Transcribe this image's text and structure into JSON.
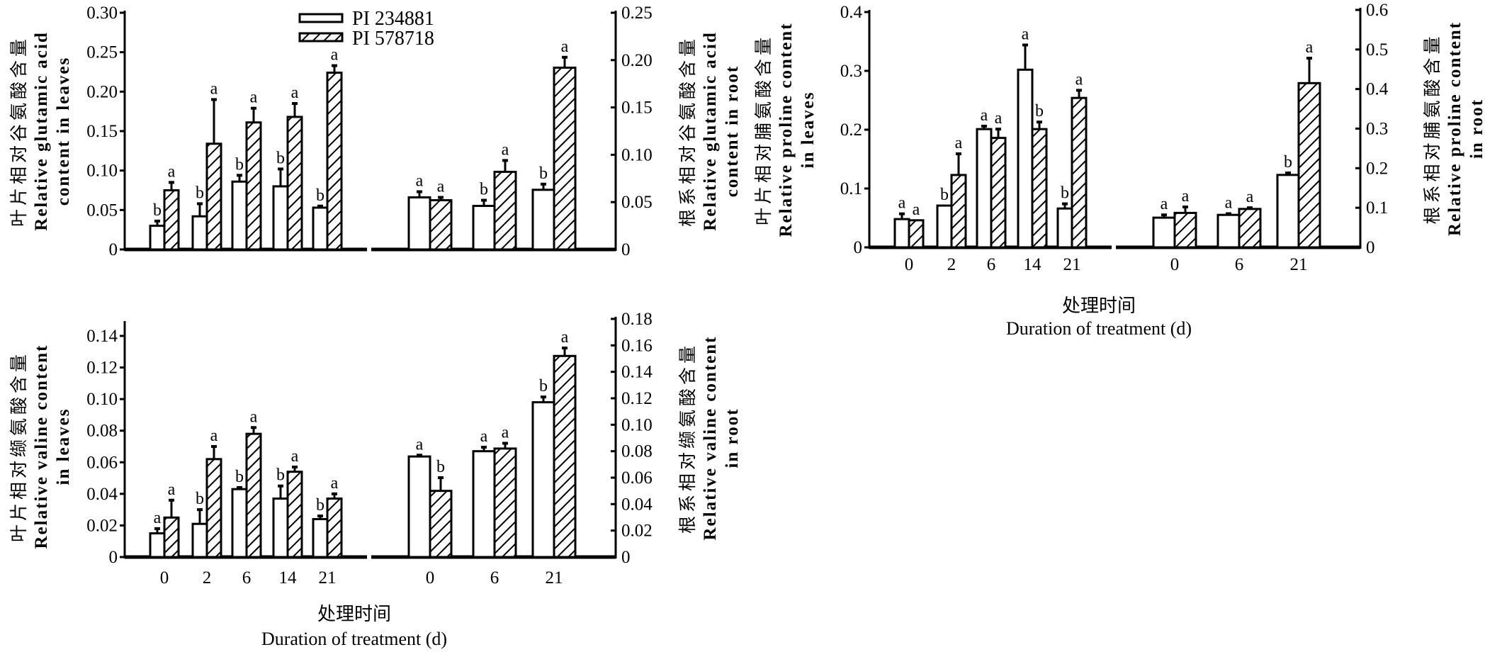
{
  "legend": {
    "series": [
      "PI 234881",
      "PI 578718"
    ]
  },
  "chart_data": [
    {
      "type": "bar",
      "xlabel_cn": "",
      "xlabel_en": "",
      "leaves": {
        "ylabel_cn": "叶片相对谷氨酸含量",
        "ylabel_en": [
          "Relative glutamic acid",
          "content in leaves"
        ],
        "ylim": [
          0,
          0.3
        ],
        "ticks": [
          "0",
          "0.05",
          "0.10",
          "0.15",
          "0.20",
          "0.25",
          "0.30"
        ],
        "tick_values": [
          0,
          0.05,
          0.1,
          0.15,
          0.2,
          0.25,
          0.3
        ],
        "categories": [
          "0",
          "2",
          "6",
          "14",
          "21"
        ],
        "show_categories": false,
        "series": [
          {
            "name": "PI 234881",
            "values": [
              0.03,
              0.042,
              0.086,
              0.08,
              0.053
            ],
            "errors": [
              0.006,
              0.016,
              0.008,
              0.022,
              0.002
            ],
            "letters": [
              "b",
              "b",
              "b",
              "b",
              "b"
            ]
          },
          {
            "name": "PI 578718",
            "values": [
              0.075,
              0.134,
              0.161,
              0.168,
              0.224
            ],
            "errors": [
              0.01,
              0.056,
              0.018,
              0.017,
              0.009
            ],
            "letters": [
              "a",
              "a",
              "a",
              "a",
              "a"
            ]
          }
        ]
      },
      "root": {
        "ylabel_cn": "根系相对谷氨酸含量",
        "ylabel_en": [
          "Relative glutamic acid",
          "content in root"
        ],
        "ylim": [
          0,
          0.25
        ],
        "ticks": [
          "0",
          "0.05",
          "0.10",
          "0.15",
          "0.20",
          "0.25"
        ],
        "tick_values": [
          0,
          0.05,
          0.1,
          0.15,
          0.2,
          0.25
        ],
        "categories": [
          "0",
          "6",
          "21"
        ],
        "show_categories": false,
        "series": [
          {
            "name": "PI 234881",
            "values": [
              0.055,
              0.046,
              0.063
            ],
            "errors": [
              0.006,
              0.006,
              0.006
            ],
            "letters": [
              "a",
              "b",
              "b"
            ]
          },
          {
            "name": "PI 578718",
            "values": [
              0.052,
              0.082,
              0.192
            ],
            "errors": [
              0.003,
              0.012,
              0.011
            ],
            "letters": [
              "a",
              "a",
              "a"
            ]
          }
        ]
      }
    },
    {
      "type": "bar",
      "xlabel_cn": "处理时间",
      "xlabel_en": "Duration of treatment (d)",
      "leaves": {
        "ylabel_cn": "叶片相对脯氨酸含量",
        "ylabel_en": [
          "Relative proline content",
          "in leaves"
        ],
        "ylim": [
          0,
          0.4
        ],
        "ticks": [
          "0",
          "0.1",
          "0.2",
          "0.3",
          "0.4"
        ],
        "tick_values": [
          0,
          0.1,
          0.2,
          0.3,
          0.4
        ],
        "categories": [
          "0",
          "2",
          "6",
          "14",
          "21"
        ],
        "show_categories": true,
        "series": [
          {
            "name": "PI 234881",
            "values": [
              0.048,
              0.071,
              0.201,
              0.302,
              0.066
            ],
            "errors": [
              0.009,
              0.0,
              0.005,
              0.042,
              0.008
            ],
            "letters": [
              "a",
              "b",
              "a",
              "a",
              "b"
            ]
          },
          {
            "name": "PI 578718",
            "values": [
              0.046,
              0.123,
              0.186,
              0.201,
              0.254
            ],
            "errors": [
              0.0,
              0.036,
              0.015,
              0.012,
              0.013
            ],
            "letters": [
              "a",
              "a",
              "a",
              "b",
              "a"
            ]
          }
        ]
      },
      "root": {
        "ylabel_cn": "根系相对脯氨酸含量",
        "ylabel_en": [
          "Relative proline content",
          "in root"
        ],
        "ylim": [
          0,
          0.6
        ],
        "ticks": [
          "0",
          "0.1",
          "0.2",
          "0.3",
          "0.4",
          "0.5",
          "0.6"
        ],
        "tick_values": [
          0,
          0.1,
          0.2,
          0.3,
          0.4,
          0.5,
          0.6
        ],
        "categories": [
          "0",
          "6",
          "21"
        ],
        "show_categories": true,
        "series": [
          {
            "name": "PI 234881",
            "values": [
              0.075,
              0.082,
              0.183
            ],
            "errors": [
              0.007,
              0.003,
              0.005
            ],
            "letters": [
              "a",
              "a",
              "b"
            ]
          },
          {
            "name": "PI 578718",
            "values": [
              0.087,
              0.097,
              0.415
            ],
            "errors": [
              0.015,
              0.003,
              0.063
            ],
            "letters": [
              "a",
              "a",
              "a"
            ]
          }
        ]
      }
    },
    {
      "type": "bar",
      "xlabel_cn": "处理时间",
      "xlabel_en": "Duration of treatment (d)",
      "leaves": {
        "ylabel_cn": "叶片相对缬氨酸含量",
        "ylabel_en": [
          "Relative valine content",
          "in leaves"
        ],
        "ylim": [
          0,
          0.15
        ],
        "ticks": [
          "0",
          "0.02",
          "0.04",
          "0.06",
          "0.08",
          "0.10",
          "0.12",
          "0.14"
        ],
        "tick_values": [
          0,
          0.02,
          0.04,
          0.06,
          0.08,
          0.1,
          0.12,
          0.14
        ],
        "categories": [
          "0",
          "2",
          "6",
          "14",
          "21"
        ],
        "show_categories": true,
        "series": [
          {
            "name": "PI 234881",
            "values": [
              0.015,
              0.021,
              0.043,
              0.037,
              0.024
            ],
            "errors": [
              0.003,
              0.009,
              0.001,
              0.008,
              0.002
            ],
            "letters": [
              "a",
              "b",
              "b",
              "b",
              "b"
            ]
          },
          {
            "name": "PI 578718",
            "values": [
              0.025,
              0.062,
              0.078,
              0.054,
              0.037
            ],
            "errors": [
              0.011,
              0.008,
              0.004,
              0.003,
              0.003
            ],
            "letters": [
              "a",
              "a",
              "a",
              "a",
              "a"
            ]
          }
        ]
      },
      "root": {
        "ylabel_cn": "根系相对缬氨酸含量",
        "ylabel_en": [
          "Relative valine content",
          "in root"
        ],
        "ylim": [
          0,
          0.18
        ],
        "ticks": [
          "0",
          "0.02",
          "0.04",
          "0.06",
          "0.08",
          "0.10",
          "0.12",
          "0.14",
          "0.16",
          "0.18"
        ],
        "tick_values": [
          0,
          0.02,
          0.04,
          0.06,
          0.08,
          0.1,
          0.12,
          0.14,
          0.16,
          0.18
        ],
        "categories": [
          "0",
          "6",
          "21"
        ],
        "show_categories": true,
        "series": [
          {
            "name": "PI 234881",
            "values": [
              0.076,
              0.08,
              0.117
            ],
            "errors": [
              0.001,
              0.003,
              0.004
            ],
            "letters": [
              "a",
              "a",
              "b"
            ]
          },
          {
            "name": "PI 578718",
            "values": [
              0.05,
              0.082,
              0.152
            ],
            "errors": [
              0.01,
              0.004,
              0.006
            ],
            "letters": [
              "b",
              "a",
              "a"
            ]
          }
        ]
      }
    }
  ]
}
